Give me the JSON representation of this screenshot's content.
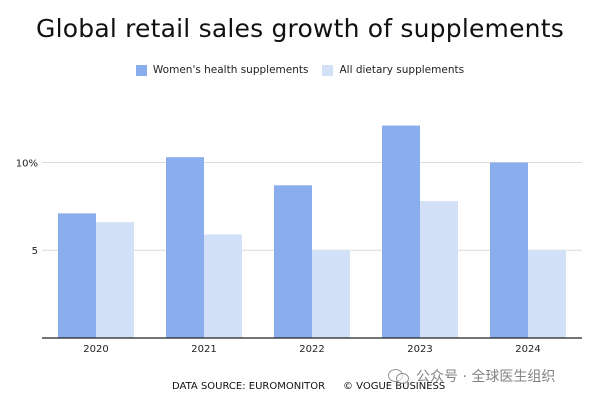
{
  "chart_data": {
    "type": "bar",
    "title": "Global retail sales growth of supplements",
    "categories": [
      "2020",
      "2021",
      "2022",
      "2023",
      "2024"
    ],
    "series": [
      {
        "name": "Women's health supplements",
        "values": [
          7.1,
          10.3,
          8.7,
          12.1,
          10.0
        ],
        "color": "#8AADED"
      },
      {
        "name": "All dietary supplements",
        "values": [
          6.6,
          5.9,
          5.0,
          7.8,
          5.0
        ],
        "color": "#D3E1F8"
      }
    ],
    "y_ticks": [
      {
        "value": 5,
        "label": "5"
      },
      {
        "value": 10,
        "label": "10%"
      }
    ],
    "ylim": [
      0,
      13.5
    ],
    "grid": true,
    "legend_position": "top-center"
  },
  "footer": {
    "source": "DATA SOURCE: EUROMONITOR",
    "credit": "© VOGUE BUSINESS"
  },
  "watermark": {
    "text": "公众号 · 全球医生组织",
    "icon": "chat-bubbles-icon"
  }
}
